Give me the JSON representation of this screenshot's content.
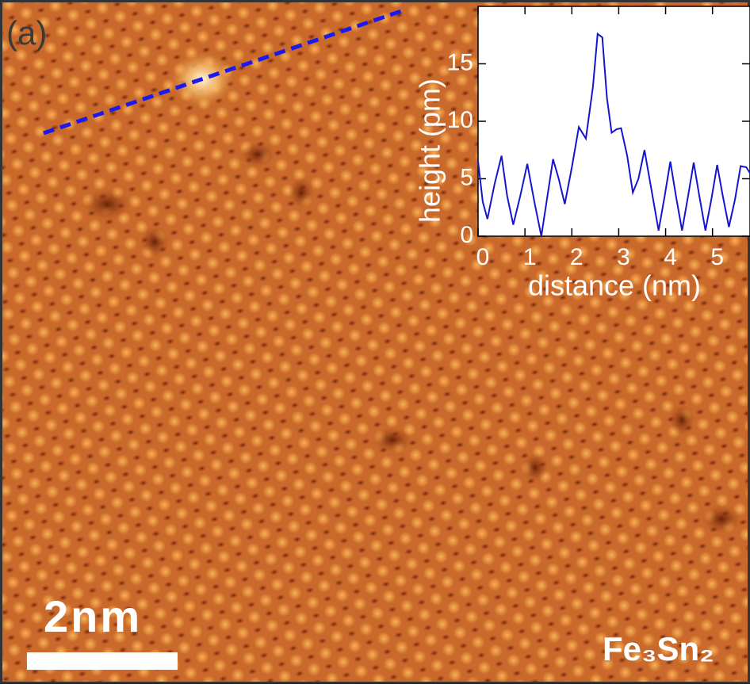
{
  "panel_label": "(a)",
  "scale_bar_label": "2nm",
  "material_label": "Fe₃Sn₂",
  "chart_data": {
    "type": "line",
    "xlabel": "distance (nm)",
    "ylabel": "height (pm)",
    "x": [
      0,
      0.1,
      0.2,
      0.35,
      0.5,
      0.62,
      0.75,
      0.9,
      1.05,
      1.2,
      1.35,
      1.48,
      1.6,
      1.72,
      1.85,
      2.0,
      2.15,
      2.3,
      2.45,
      2.55,
      2.65,
      2.75,
      2.85,
      2.95,
      3.05,
      3.18,
      3.3,
      3.42,
      3.55,
      3.7,
      3.85,
      3.98,
      4.1,
      4.22,
      4.35,
      4.48,
      4.6,
      4.72,
      4.85,
      4.98,
      5.1,
      5.22,
      5.35,
      5.48,
      5.6,
      5.72,
      5.8
    ],
    "values": [
      6.5,
      3,
      1.5,
      4.5,
      7,
      3.5,
      1,
      3.5,
      6.3,
      3,
      0,
      3.5,
      6.7,
      5,
      2.8,
      6,
      9.5,
      8.5,
      13,
      17.6,
      17.3,
      12,
      9,
      9.3,
      9.4,
      7,
      3.8,
      5,
      7.5,
      4,
      0.5,
      3.5,
      6.5,
      3.5,
      0.5,
      3.5,
      6.4,
      3.5,
      0.5,
      3.3,
      6.2,
      3.5,
      0.8,
      3.2,
      6.1,
      6,
      5.5
    ],
    "color": "#1515d0",
    "xlim": [
      0,
      5.8
    ],
    "ylim": [
      0,
      20
    ],
    "xticks": [
      0,
      1,
      2,
      3,
      4,
      5
    ],
    "yticks": [
      0,
      5,
      10,
      15
    ]
  }
}
